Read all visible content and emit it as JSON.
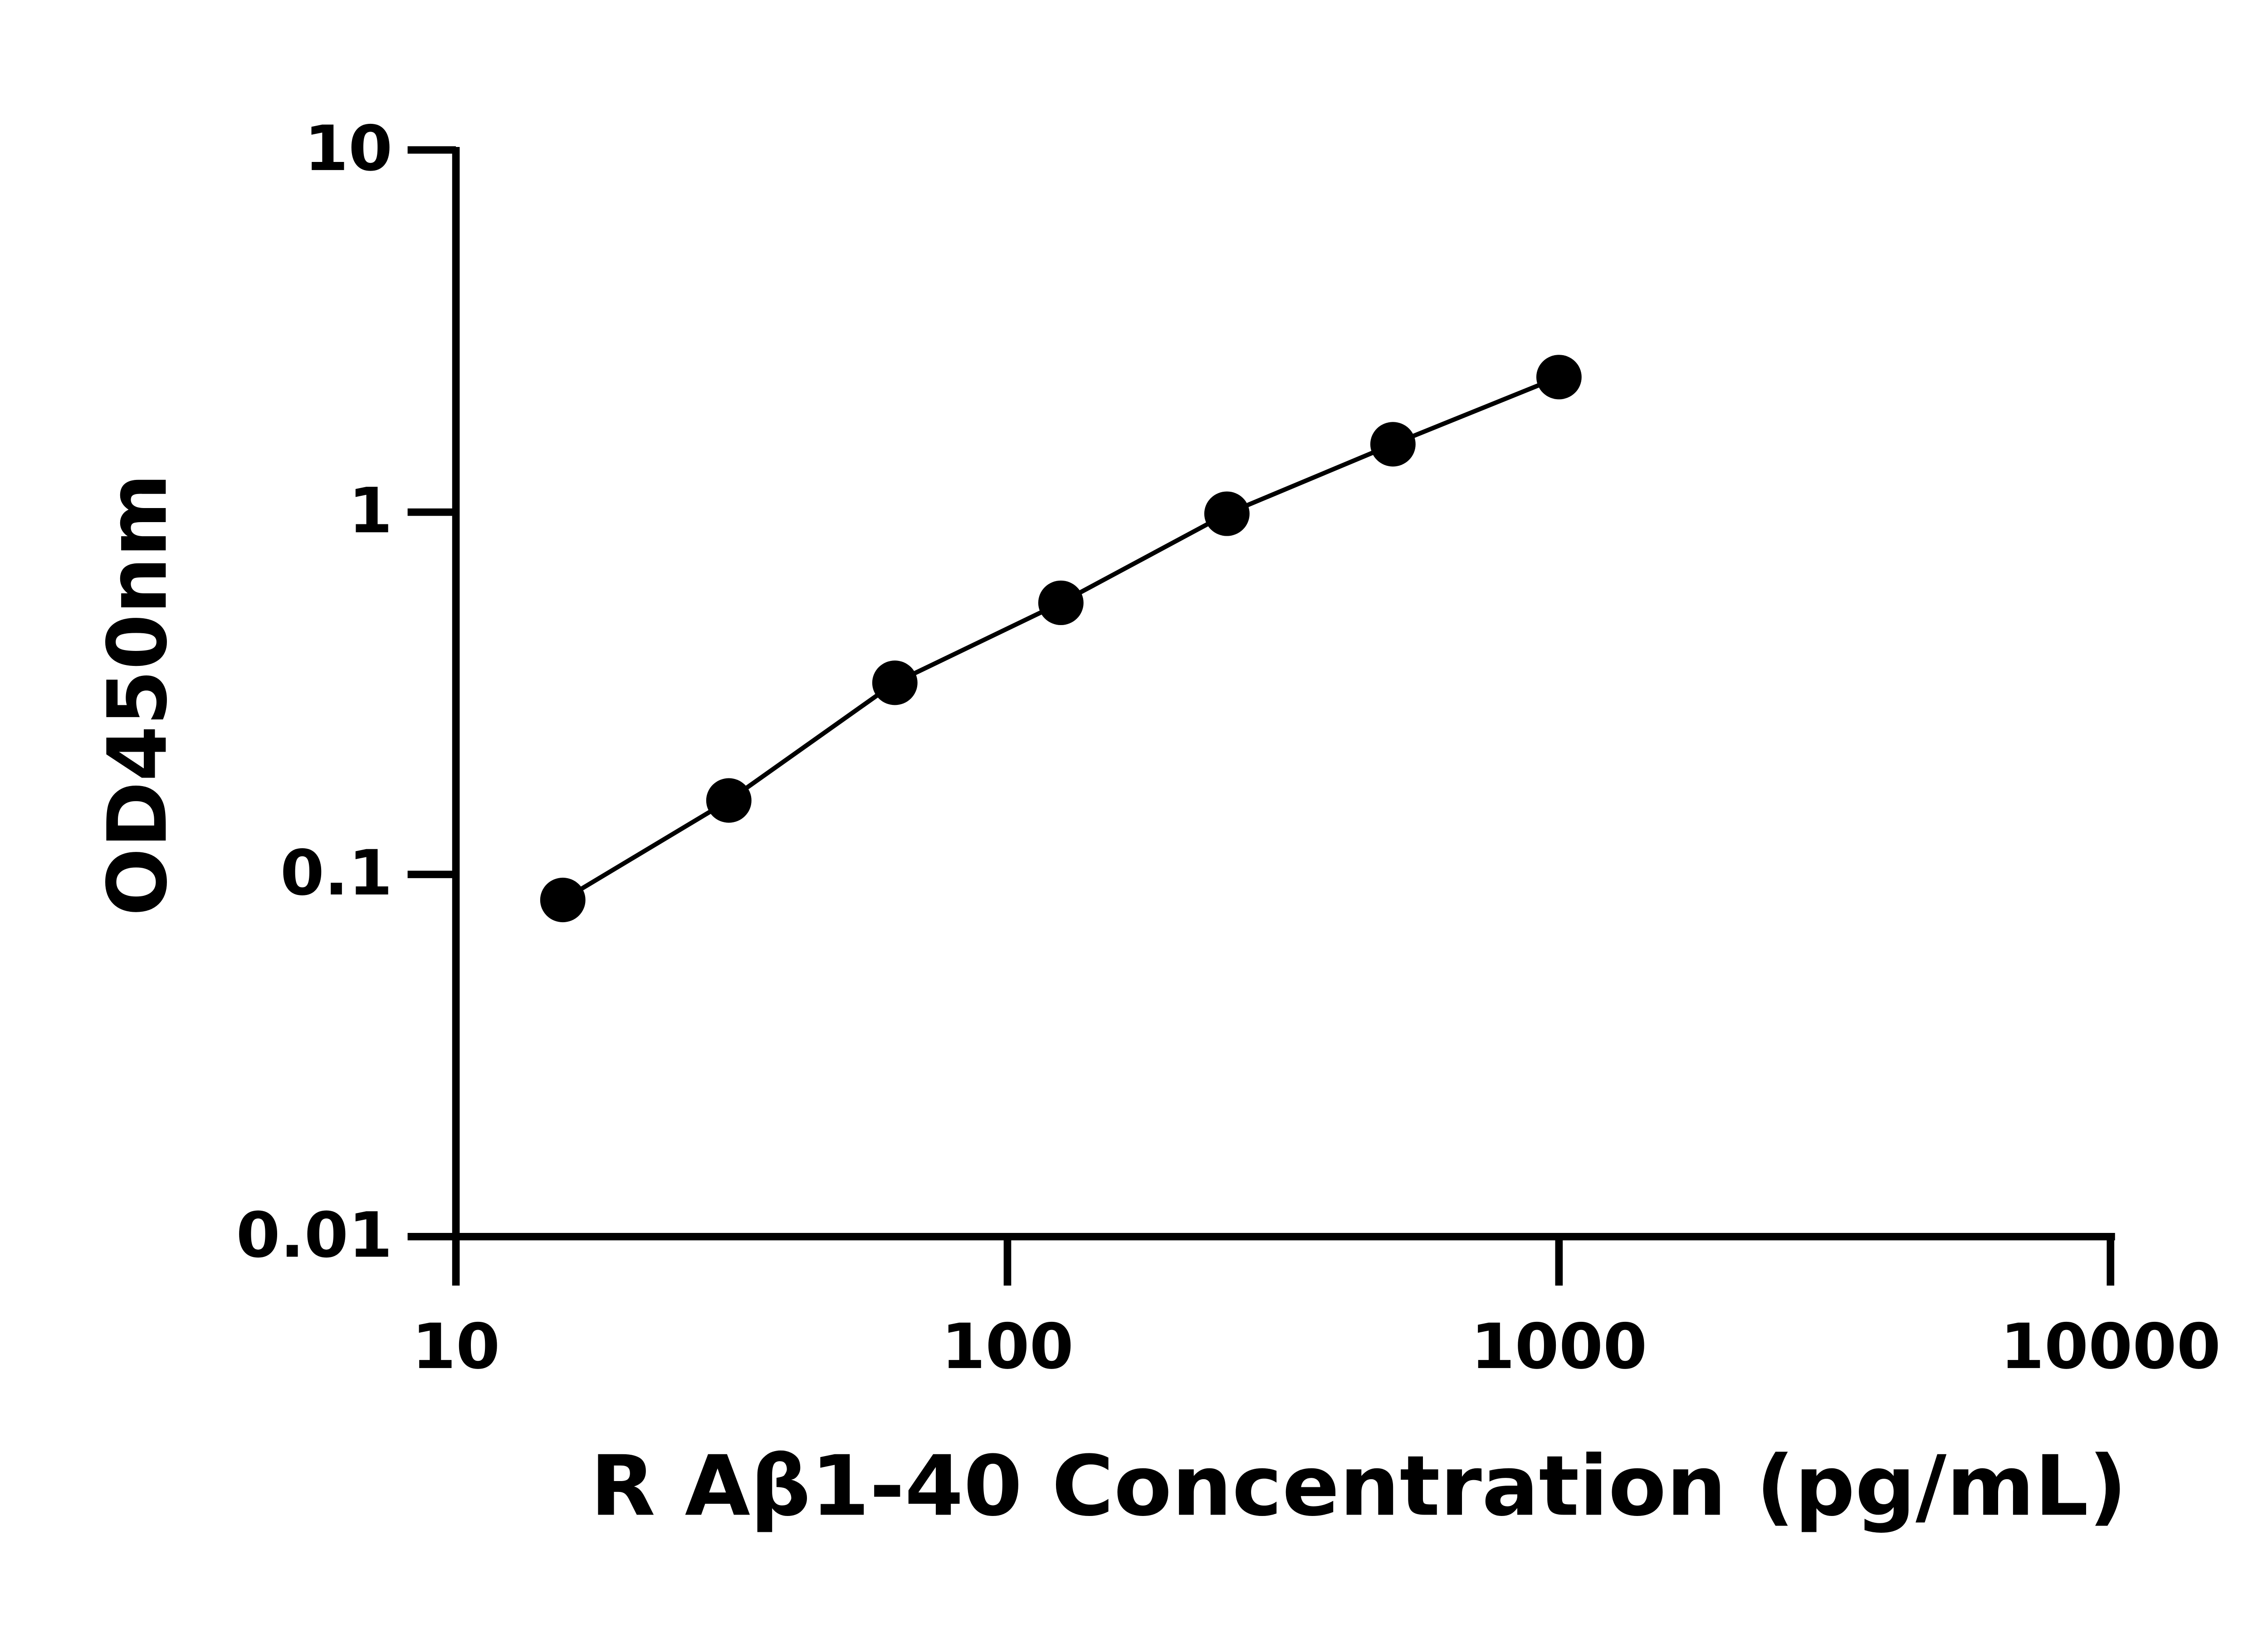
{
  "chart_data": {
    "type": "scatter",
    "log_x": true,
    "log_y": true,
    "grid": false,
    "color": "#000000",
    "x_label": "R Aβ1-40 Concentration (pg/mL)",
    "y_label": "OD450nm",
    "x": [
      15.625,
      31.25,
      62.5,
      125,
      250,
      500,
      1000
    ],
    "values": [
      0.085,
      0.16,
      0.338,
      0.562,
      0.99,
      1.54,
      2.36
    ],
    "xlim": [
      10,
      10000
    ],
    "ylim": [
      0.01,
      10
    ],
    "xticks": [
      10,
      100,
      1000,
      10000
    ],
    "yticks": [
      0.01,
      0.1,
      1,
      10
    ]
  }
}
